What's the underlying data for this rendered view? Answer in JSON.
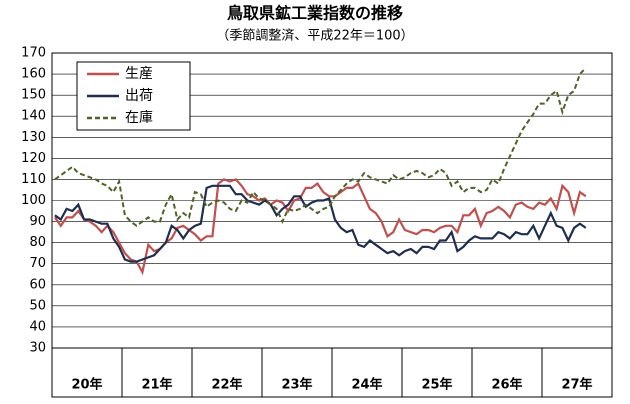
{
  "chart_data": {
    "type": "line",
    "title": "鳥取県鉱工業指数の推移",
    "subtitle": "（季節調整済、平成22年＝100）",
    "categories": [
      "20年",
      null,
      null,
      null,
      null,
      null,
      null,
      null,
      null,
      null,
      null,
      null,
      "21年",
      null,
      null,
      null,
      null,
      null,
      null,
      null,
      null,
      null,
      null,
      null,
      "22年",
      null,
      null,
      null,
      null,
      null,
      null,
      null,
      null,
      null,
      null,
      null,
      "23年",
      null,
      null,
      null,
      null,
      null,
      null,
      null,
      null,
      null,
      null,
      null,
      "24年",
      null,
      null,
      null,
      null,
      null,
      null,
      null,
      null,
      null,
      null,
      null,
      "25年",
      null,
      null,
      null,
      null,
      null,
      null,
      null,
      null,
      null,
      null,
      null,
      "26年",
      null,
      null,
      null,
      null,
      null,
      null,
      null,
      null,
      null,
      null,
      null,
      "27年",
      null,
      null,
      null,
      null,
      null,
      null,
      null,
      null,
      null,
      null,
      null
    ],
    "series": [
      {
        "name": "生産",
        "color": "#c0504d",
        "dash": false,
        "values": [
          92,
          88,
          92,
          92,
          95,
          91,
          90,
          88,
          85,
          88,
          85,
          80,
          75,
          72,
          71,
          66,
          79,
          76,
          77,
          80,
          82,
          87,
          88,
          86,
          84,
          81,
          83,
          83,
          108,
          110,
          109,
          110,
          107,
          103,
          102,
          100,
          101,
          98,
          100,
          99,
          95,
          100,
          101,
          106,
          106,
          108,
          104,
          102,
          102,
          104,
          106,
          106,
          108,
          102,
          96,
          94,
          90,
          83,
          85,
          91,
          86,
          85,
          84,
          86,
          86,
          85,
          87,
          88,
          88,
          85,
          93,
          93,
          96,
          88,
          94,
          95,
          97,
          95,
          92,
          98,
          99,
          97,
          96,
          99,
          98,
          101,
          96,
          107,
          104,
          94,
          104,
          102,
          null,
          null,
          null,
          null
        ]
      },
      {
        "name": "出荷",
        "color": "#1f2d4f",
        "dash": false,
        "values": [
          93,
          91,
          96,
          95,
          98,
          91,
          91,
          90,
          89,
          89,
          82,
          78,
          72,
          71,
          71,
          72,
          73,
          74,
          77,
          80,
          88,
          86,
          82,
          86,
          88,
          89,
          106,
          107,
          107,
          107,
          107,
          103,
          103,
          100,
          99,
          98,
          100,
          98,
          93,
          96,
          98,
          102,
          102,
          97,
          99,
          100,
          100,
          101,
          91,
          87,
          85,
          86,
          79,
          78,
          81,
          79,
          77,
          75,
          76,
          74,
          76,
          77,
          75,
          78,
          78,
          77,
          81,
          81,
          85,
          76,
          78,
          81,
          83,
          82,
          82,
          82,
          85,
          84,
          82,
          85,
          84,
          84,
          88,
          82,
          88,
          94,
          88,
          87,
          81,
          87,
          89,
          87,
          null,
          null,
          null,
          null
        ]
      },
      {
        "name": "在庫",
        "color": "#4f6228",
        "dash": true,
        "values": [
          110,
          112,
          114,
          116,
          113,
          112,
          111,
          110,
          108,
          107,
          104,
          109,
          93,
          90,
          88,
          90,
          92,
          90,
          90,
          98,
          103,
          91,
          94,
          92,
          104,
          103,
          97,
          99,
          100,
          99,
          96,
          95,
          100,
          99,
          104,
          101,
          100,
          98,
          96,
          90,
          96,
          95,
          96,
          98,
          96,
          94,
          96,
          97,
          102,
          105,
          108,
          110,
          109,
          113,
          111,
          110,
          109,
          108,
          112,
          110,
          111,
          113,
          114,
          113,
          111,
          112,
          115,
          113,
          107,
          109,
          104,
          106,
          106,
          104,
          105,
          110,
          108,
          115,
          121,
          127,
          133,
          137,
          141,
          146,
          146,
          150,
          152,
          142,
          150,
          152,
          160,
          163,
          null,
          null,
          null,
          null
        ]
      }
    ],
    "ylim": [
      30,
      170
    ],
    "yticks": [
      30,
      40,
      50,
      60,
      70,
      80,
      90,
      100,
      110,
      120,
      130,
      140,
      150,
      160,
      170
    ],
    "grid": true,
    "legend": "upper left"
  }
}
